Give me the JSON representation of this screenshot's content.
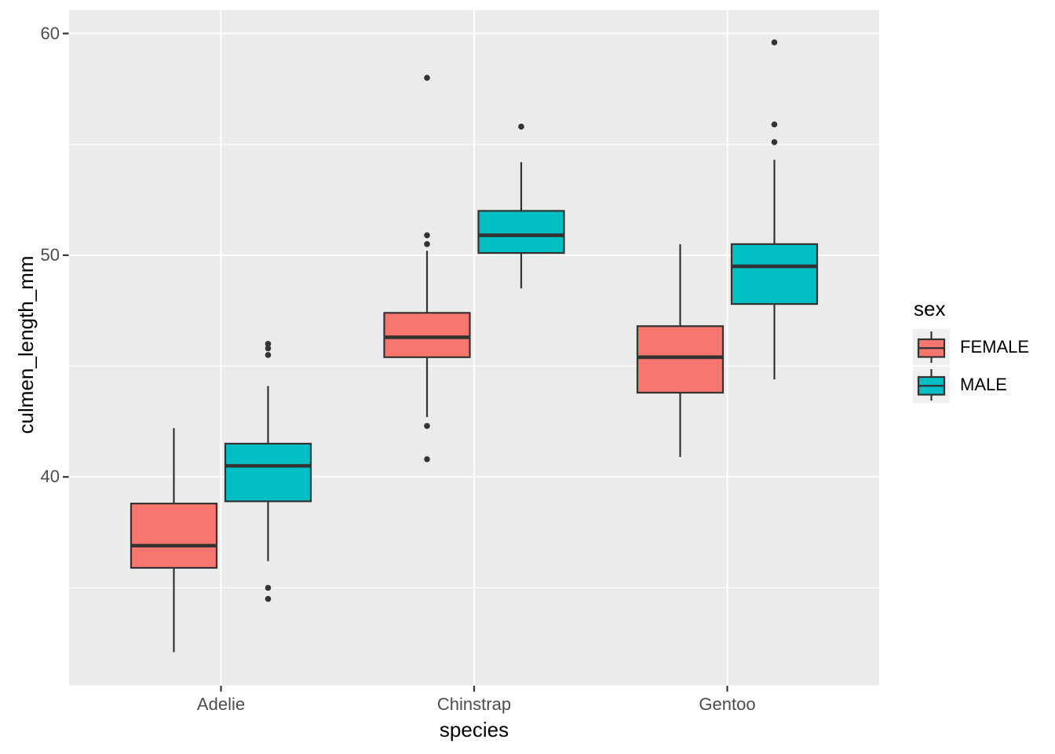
{
  "chart_data": {
    "type": "boxplot",
    "title": "",
    "xlabel": "species",
    "ylabel": "culmen_length_mm",
    "legend_title": "sex",
    "legend_position": "right",
    "categories": [
      "Adelie",
      "Chinstrap",
      "Gentoo"
    ],
    "groups": [
      {
        "label": "FEMALE",
        "color": "#F8766D"
      },
      {
        "label": "MALE",
        "color": "#00BFC4"
      }
    ],
    "y_ticks": [
      40,
      50,
      60
    ],
    "y_minor_ticks": [
      35,
      45,
      55
    ],
    "ylim": [
      30.6,
      61.05
    ],
    "grid": true,
    "panel_background": "#EBEBEB",
    "gridline_color": "#FFFFFF",
    "box_outline_color": "#333333",
    "axis_text_color": "#4d4d4d",
    "series": [
      {
        "species": "Adelie",
        "sex": "FEMALE",
        "whisker_low": 32.1,
        "q1": 35.9,
        "median": 36.9,
        "q3": 38.8,
        "whisker_high": 42.2,
        "outliers": []
      },
      {
        "species": "Adelie",
        "sex": "MALE",
        "whisker_low": 36.2,
        "q1": 38.9,
        "median": 40.5,
        "q3": 41.5,
        "whisker_high": 44.1,
        "outliers": [
          46.0,
          45.8,
          45.5,
          35.0,
          34.5
        ]
      },
      {
        "species": "Chinstrap",
        "sex": "FEMALE",
        "whisker_low": 42.7,
        "q1": 45.4,
        "median": 46.3,
        "q3": 47.4,
        "whisker_high": 50.2,
        "outliers": [
          58.0,
          50.9,
          50.5,
          42.3,
          40.8
        ]
      },
      {
        "species": "Chinstrap",
        "sex": "MALE",
        "whisker_low": 48.5,
        "q1": 50.1,
        "median": 50.9,
        "q3": 52.0,
        "whisker_high": 54.2,
        "outliers": [
          55.8
        ]
      },
      {
        "species": "Gentoo",
        "sex": "FEMALE",
        "whisker_low": 40.9,
        "q1": 43.8,
        "median": 45.4,
        "q3": 46.8,
        "whisker_high": 50.5,
        "outliers": []
      },
      {
        "species": "Gentoo",
        "sex": "MALE",
        "whisker_low": 44.4,
        "q1": 47.8,
        "median": 49.5,
        "q3": 50.5,
        "whisker_high": 54.3,
        "outliers": [
          59.6,
          55.9,
          55.1
        ]
      }
    ]
  }
}
